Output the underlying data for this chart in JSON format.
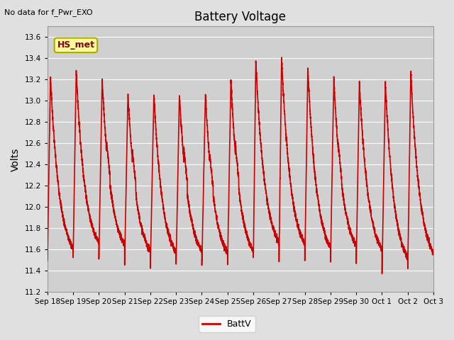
{
  "title": "Battery Voltage",
  "ylabel": "Volts",
  "top_left_text": "No data for f_Pwr_EXO",
  "legend_label": "BattV",
  "legend_line_color": "#cc0000",
  "line_color": "#cc0000",
  "line_width": 1.2,
  "ylim": [
    11.2,
    13.7
  ],
  "yticks": [
    11.2,
    11.4,
    11.6,
    11.8,
    12.0,
    12.2,
    12.4,
    12.6,
    12.8,
    13.0,
    13.2,
    13.4,
    13.6
  ],
  "xtick_labels": [
    "Sep 18",
    "Sep 19",
    "Sep 20",
    "Sep 21",
    "Sep 22",
    "Sep 23",
    "Sep 24",
    "Sep 25",
    "Sep 26",
    "Sep 27",
    "Sep 28",
    "Sep 29",
    "Sep 30",
    "Oct 1",
    "Oct 2",
    "Oct 3"
  ],
  "background_color": "#e0e0e0",
  "plot_bg_color": "#d0d0d0",
  "grid_color": "#ffffff",
  "annotation_box_text": "HS_met",
  "annotation_box_facecolor": "#ffff99",
  "annotation_box_edgecolor": "#aaaa00",
  "annotation_box_textcolor": "#880000",
  "figsize": [
    6.4,
    4.8
  ],
  "dpi": 100
}
